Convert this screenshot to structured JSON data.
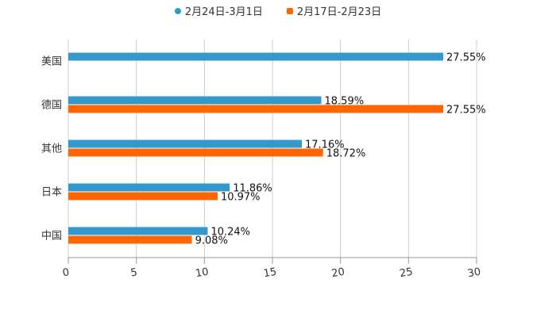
{
  "chart_data": {
    "type": "bar",
    "orientation": "horizontal",
    "title": "",
    "xlabel": "",
    "ylabel": "",
    "categories": [
      "美国",
      "德国",
      "其他",
      "日本",
      "中国"
    ],
    "series": [
      {
        "name": "2月24日-3月1日",
        "color": "#3399cc",
        "values": [
          27.55,
          18.59,
          17.16,
          11.86,
          10.24
        ],
        "labels": [
          "27.55%",
          "18.59%",
          "17.16%",
          "11.86%",
          "10.24%"
        ]
      },
      {
        "name": "2月17日-2月23日",
        "color": "#ff6600",
        "values": [
          null,
          27.55,
          18.72,
          10.97,
          9.08
        ],
        "labels": [
          null,
          "27.55%",
          "18.72%",
          "10.97%",
          "9.08%"
        ]
      }
    ],
    "xlim": [
      0,
      30
    ],
    "xticks": [
      "0",
      "5",
      "10",
      "15",
      "20",
      "25",
      "30"
    ],
    "grid": true,
    "legend_position": "top-center"
  }
}
